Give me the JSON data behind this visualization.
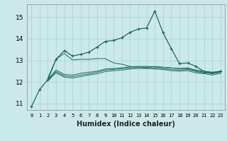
{
  "xlabel": "Humidex (Indice chaleur)",
  "xlim": [
    -0.5,
    23.5
  ],
  "ylim": [
    10.7,
    15.6
  ],
  "yticks": [
    11,
    12,
    13,
    14,
    15
  ],
  "xticks": [
    0,
    1,
    2,
    3,
    4,
    5,
    6,
    7,
    8,
    9,
    10,
    11,
    12,
    13,
    14,
    15,
    16,
    17,
    18,
    19,
    20,
    21,
    22,
    23
  ],
  "background_color": "#cce9e9",
  "grid_color": "#aed4d4",
  "line_color": "#1a6b5a",
  "line1": {
    "x": [
      0,
      1,
      2,
      3,
      4,
      5,
      6,
      7,
      8,
      9,
      10,
      11,
      12,
      13,
      14,
      15,
      16,
      17,
      18,
      19,
      20,
      21,
      22,
      23
    ],
    "y": [
      10.85,
      11.65,
      12.1,
      13.05,
      13.45,
      13.2,
      13.28,
      13.38,
      13.62,
      13.88,
      13.92,
      14.05,
      14.3,
      14.45,
      14.5,
      15.28,
      14.28,
      13.55,
      12.85,
      12.88,
      12.72,
      12.48,
      12.42,
      12.5
    ]
  },
  "line2": {
    "x": [
      2,
      3,
      4,
      5,
      6,
      7,
      8,
      9,
      10,
      11,
      12,
      13,
      14,
      15,
      16,
      17,
      18,
      19,
      20,
      21,
      22,
      23
    ],
    "y": [
      12.18,
      13.05,
      13.32,
      13.02,
      13.05,
      13.05,
      13.08,
      13.08,
      12.88,
      12.82,
      12.72,
      12.68,
      12.65,
      12.72,
      12.68,
      12.65,
      12.62,
      12.65,
      12.55,
      12.5,
      12.45,
      12.5
    ]
  },
  "line3": {
    "x": [
      2,
      3,
      4,
      5,
      6,
      7,
      8,
      9,
      10,
      11,
      12,
      13,
      14,
      15,
      16,
      17,
      18,
      19,
      20,
      21,
      22,
      23
    ],
    "y": [
      12.12,
      12.55,
      12.35,
      12.32,
      12.4,
      12.45,
      12.5,
      12.6,
      12.62,
      12.65,
      12.7,
      12.72,
      12.72,
      12.7,
      12.68,
      12.65,
      12.62,
      12.62,
      12.52,
      12.45,
      12.42,
      12.48
    ]
  },
  "line4": {
    "x": [
      2,
      3,
      4,
      5,
      6,
      7,
      8,
      9,
      10,
      11,
      12,
      13,
      14,
      15,
      16,
      17,
      18,
      19,
      20,
      21,
      22,
      23
    ],
    "y": [
      12.08,
      12.48,
      12.28,
      12.25,
      12.32,
      12.38,
      12.45,
      12.55,
      12.58,
      12.62,
      12.65,
      12.68,
      12.68,
      12.65,
      12.62,
      12.58,
      12.55,
      12.58,
      12.48,
      12.42,
      12.38,
      12.45
    ]
  },
  "line5": {
    "x": [
      2,
      3,
      4,
      5,
      6,
      7,
      8,
      9,
      10,
      11,
      12,
      13,
      14,
      15,
      16,
      17,
      18,
      19,
      20,
      21,
      22,
      23
    ],
    "y": [
      12.05,
      12.42,
      12.22,
      12.18,
      12.25,
      12.32,
      12.38,
      12.48,
      12.52,
      12.55,
      12.6,
      12.62,
      12.62,
      12.6,
      12.58,
      12.52,
      12.5,
      12.52,
      12.42,
      12.38,
      12.32,
      12.4
    ]
  }
}
